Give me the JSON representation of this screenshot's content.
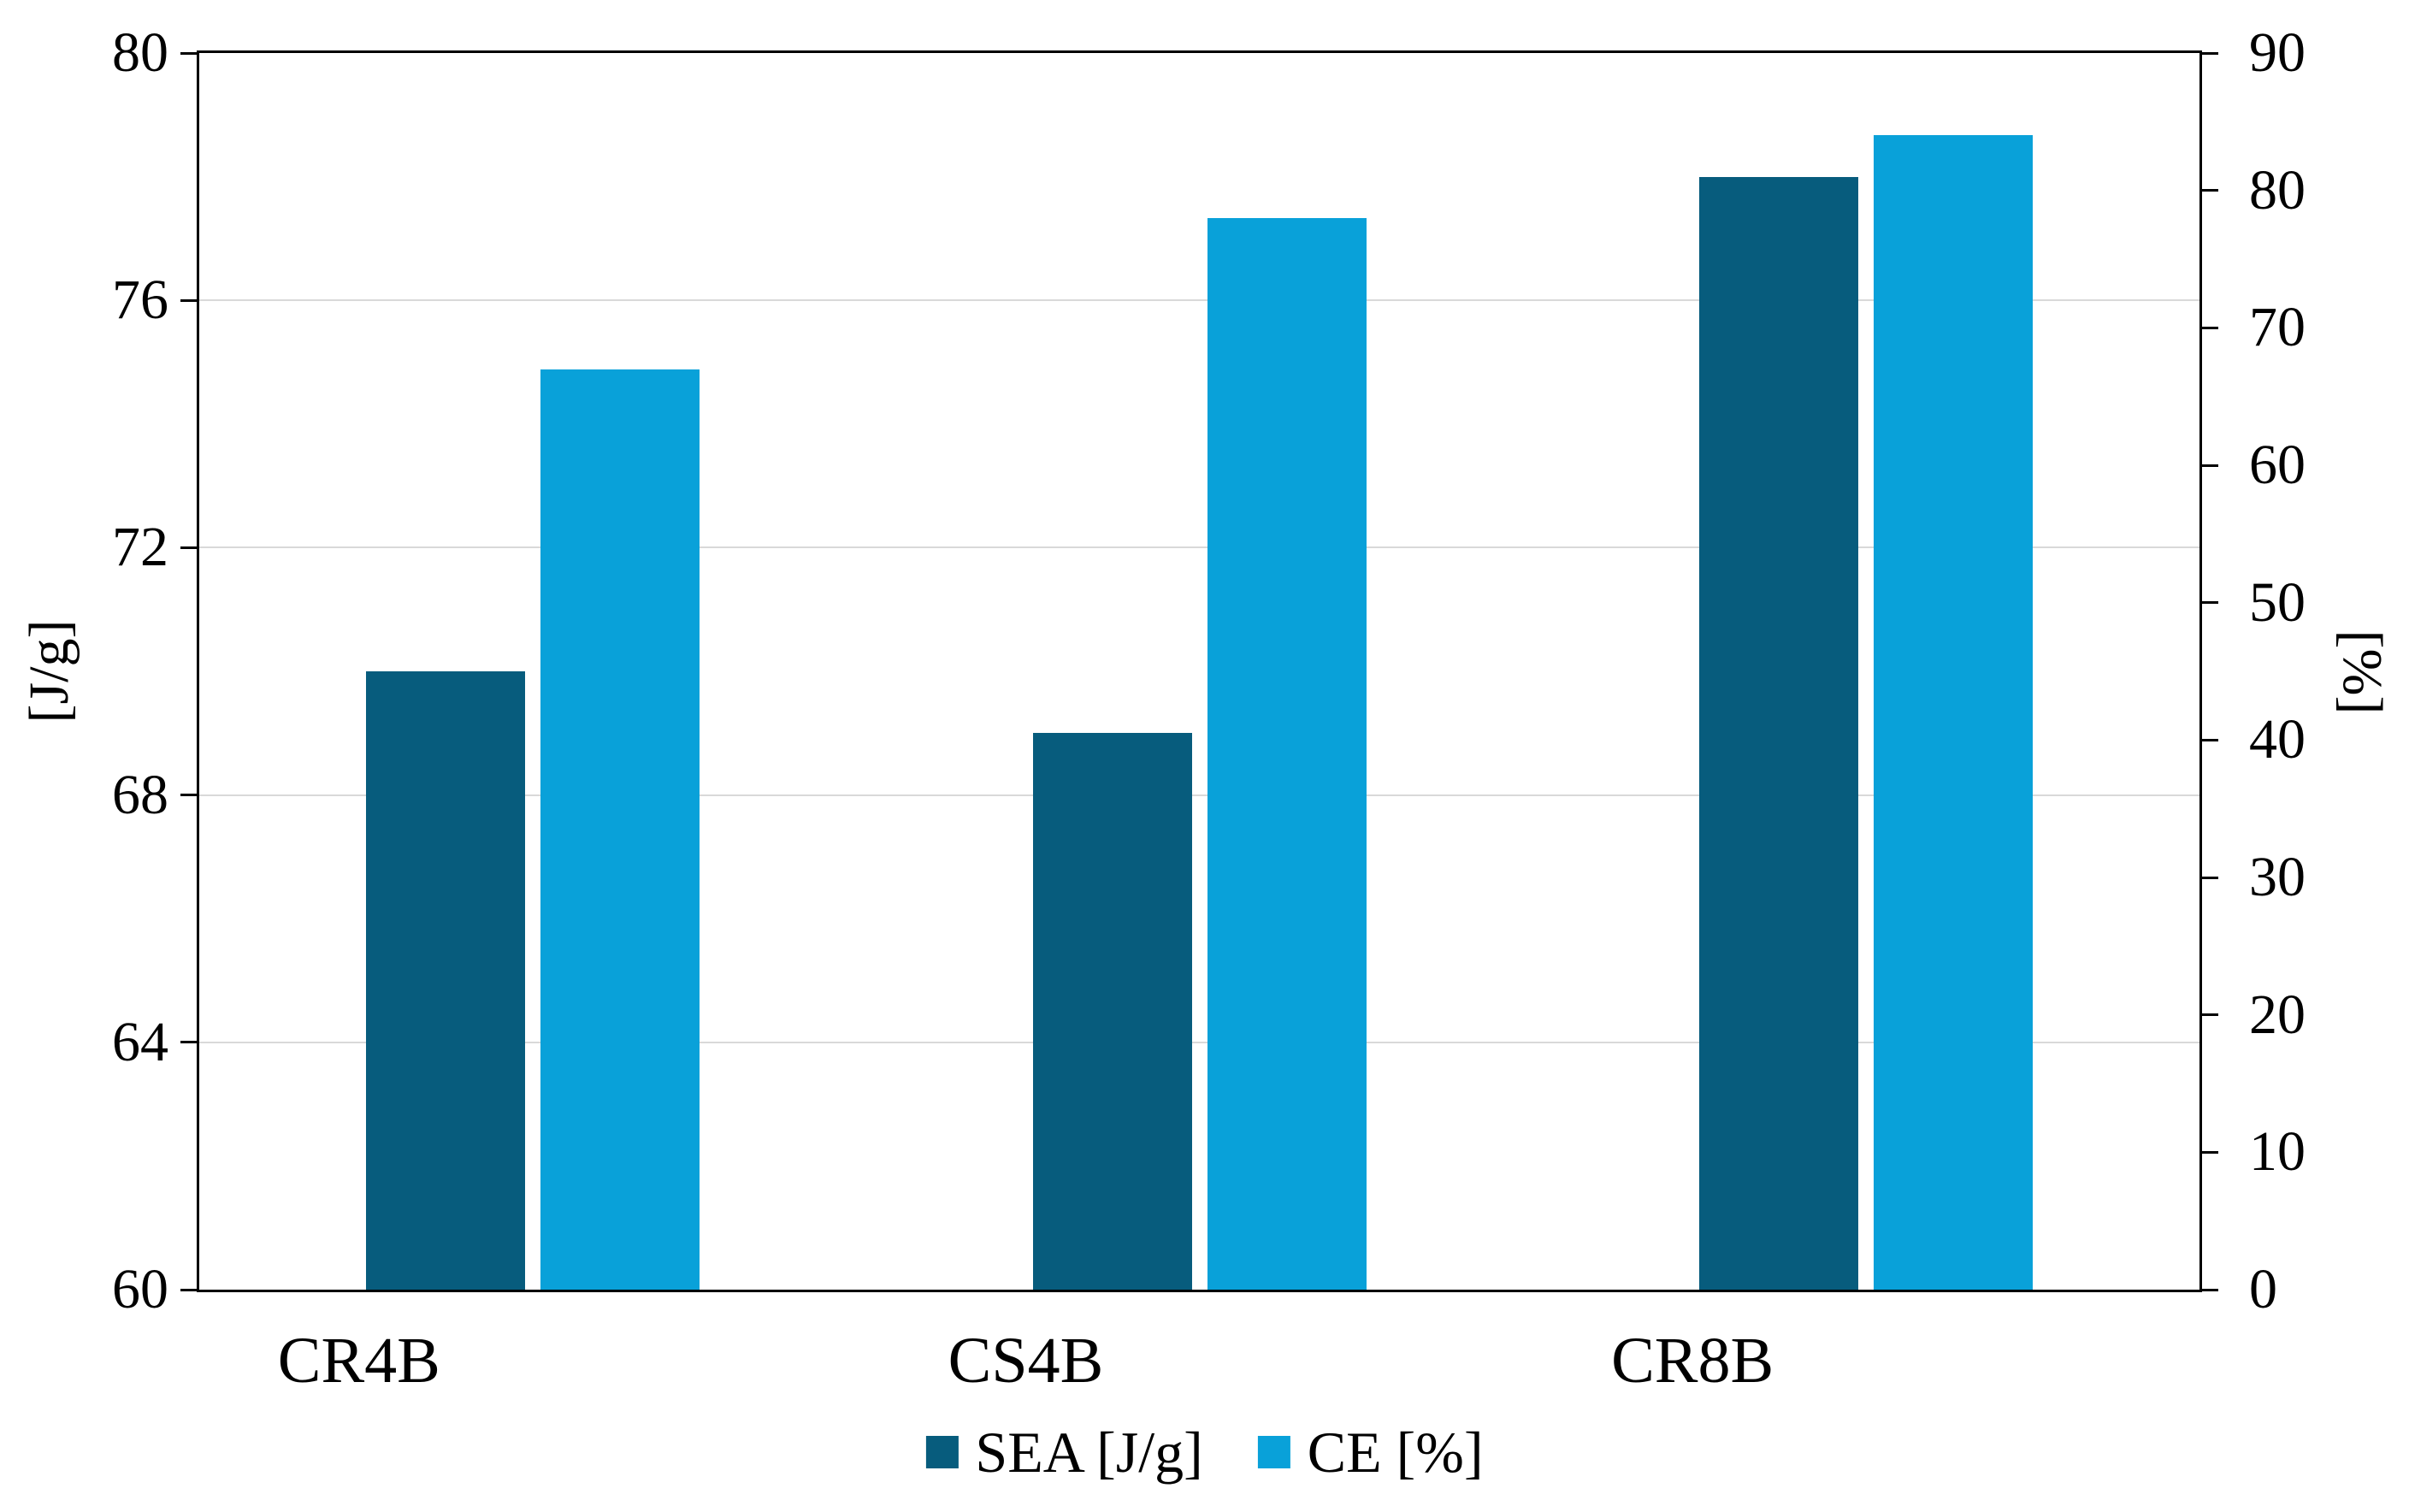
{
  "chart_data": {
    "type": "bar",
    "title": "",
    "categories": [
      "CR4B",
      "CS4B",
      "CR8B"
    ],
    "series": [
      {
        "name": "SEA [J/g]",
        "axis": "left",
        "color": "#075C7D",
        "values": [
          70,
          69,
          78
        ]
      },
      {
        "name": "CE [%]",
        "axis": "right",
        "color": "#09A1D9",
        "values": [
          67,
          78,
          84
        ]
      }
    ],
    "left_axis": {
      "label": "[J/g]",
      "min": 60,
      "max": 80,
      "step": 4,
      "ticks": [
        60,
        64,
        68,
        72,
        76,
        80
      ]
    },
    "right_axis": {
      "label": "[%]",
      "min": 0,
      "max": 90,
      "step": 10,
      "ticks": [
        0,
        10,
        20,
        30,
        40,
        50,
        60,
        70,
        80,
        90
      ]
    },
    "grid": {
      "horizontal_at_left_values": [
        64,
        68,
        72,
        76
      ],
      "color": "#D9D9D9"
    },
    "legend_position": "bottom"
  },
  "colors": {
    "axis_line": "#000000",
    "gridline": "#D9D9D9",
    "background": "#FFFFFF",
    "sea_bar": "#075C7D",
    "ce_bar": "#09A1D9"
  }
}
